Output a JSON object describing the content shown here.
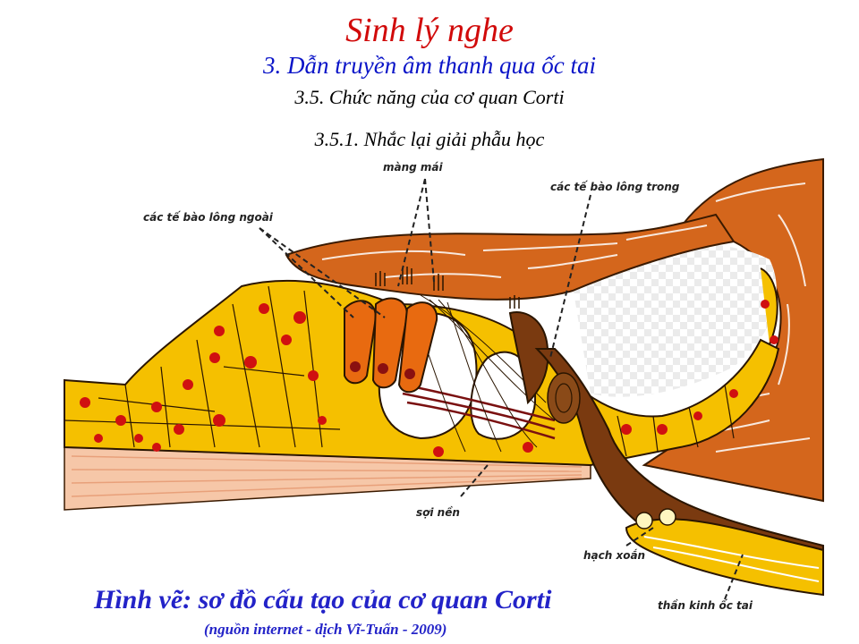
{
  "header": {
    "title": "Sinh lý nghe",
    "subtitle": "3. Dẫn truyền âm thanh qua ốc tai",
    "section": "3.5. Chức năng của cơ quan Corti",
    "subsection": "3.5.1. Nhắc lại giải phẫu học"
  },
  "labels": {
    "tectorial": "màng mái",
    "inner_hair_cells": "các tế bào lông trong",
    "outer_hair_cells": "các tế bào lông ngoài",
    "basilar": "sợi nền",
    "spiral_ganglion": "hạch xoắn",
    "cochlear_nerve": "thần kinh ốc tai"
  },
  "caption": {
    "main": "Hình vẽ: sơ đồ cấu tạo của cơ quan Corti",
    "credit": "(nguồn internet - dịch Vĩ-Tuấn - 2009)"
  },
  "colors": {
    "title": "#d10a0a",
    "subtitle": "#0a14c8",
    "caption": "#2323c8",
    "tissue_orange": "#d4661c",
    "cells_yellow": "#f5c000",
    "nucleus_red": "#d01010",
    "nerve_brown": "#7a3a10"
  }
}
